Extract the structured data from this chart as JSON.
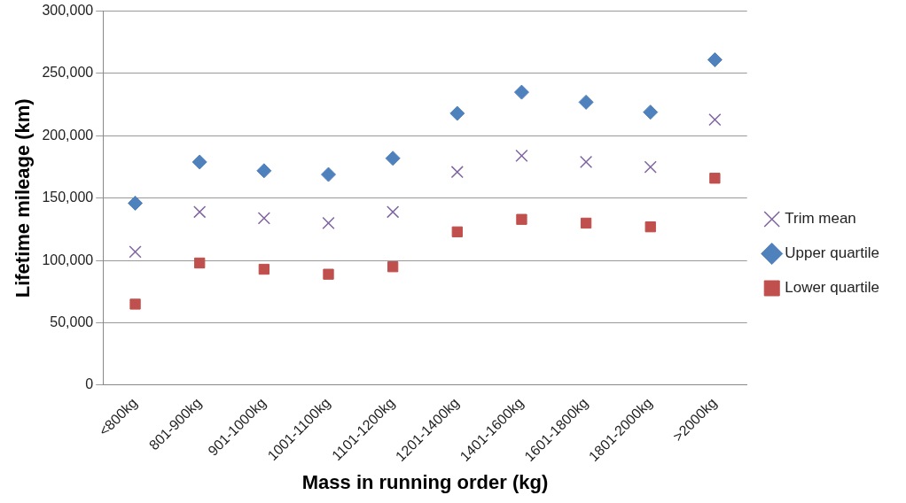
{
  "chart_data": {
    "type": "scatter",
    "xlabel": "Mass in running order (kg)",
    "ylabel": "Lifetime mileage (km)",
    "categories": [
      "<800kg",
      "801-900kg",
      "901-1000kg",
      "1001-1100kg",
      "1101-1200kg",
      "1201-1400kg",
      "1401-1600kg",
      "1601-1800kg",
      "1801-2000kg",
      ">2000kg"
    ],
    "ylim": [
      0,
      300000
    ],
    "yticks": [
      0,
      {
        "value": 50000,
        "label": "50,000"
      },
      {
        "value": 100000,
        "label": "100,000"
      },
      {
        "value": 150000,
        "label": "150,000"
      },
      {
        "value": 200000,
        "label": "200,000"
      },
      {
        "value": 250000,
        "label": "250,000"
      },
      {
        "value": 300000,
        "label": "300,000"
      }
    ],
    "grid": "y",
    "legend": "right",
    "series": [
      {
        "name": "Trim mean",
        "color": "#8064a2",
        "marker": "cross",
        "values": [
          107000,
          139000,
          134000,
          130000,
          139000,
          171000,
          184000,
          179000,
          175000,
          213000
        ]
      },
      {
        "name": "Upper quartile",
        "color": "#4f81bd",
        "marker": "diamond",
        "values": [
          146000,
          179000,
          172000,
          169000,
          182000,
          218000,
          235000,
          227000,
          219000,
          261000
        ]
      },
      {
        "name": "Lower quartile",
        "color": "#c0504d",
        "marker": "square",
        "values": [
          65000,
          98000,
          93000,
          89000,
          95000,
          123000,
          133000,
          130000,
          127000,
          166000
        ]
      }
    ]
  }
}
